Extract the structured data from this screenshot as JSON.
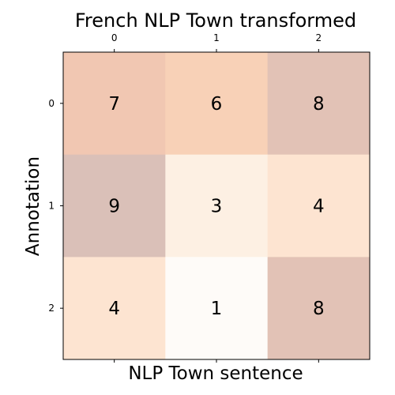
{
  "chart_data": {
    "type": "heatmap",
    "title": "French NLP Town transformed",
    "xlabel": "NLP Town sentence",
    "ylabel": "Annotation",
    "x_categories": [
      "0",
      "1",
      "2"
    ],
    "y_categories": [
      "0",
      "1",
      "2"
    ],
    "x_ticks_position": "top",
    "values": [
      [
        7,
        6,
        8
      ],
      [
        9,
        3,
        4
      ],
      [
        4,
        1,
        8
      ]
    ],
    "colors": [
      [
        "#f1c7b2",
        "#f8d1b7",
        "#e2c2b6"
      ],
      [
        "#dac0b8",
        "#fdf0e3",
        "#fde4d1"
      ],
      [
        "#fde4d1",
        "#fefbf8",
        "#e2c2b6"
      ]
    ],
    "grid": false,
    "legend": "none"
  }
}
